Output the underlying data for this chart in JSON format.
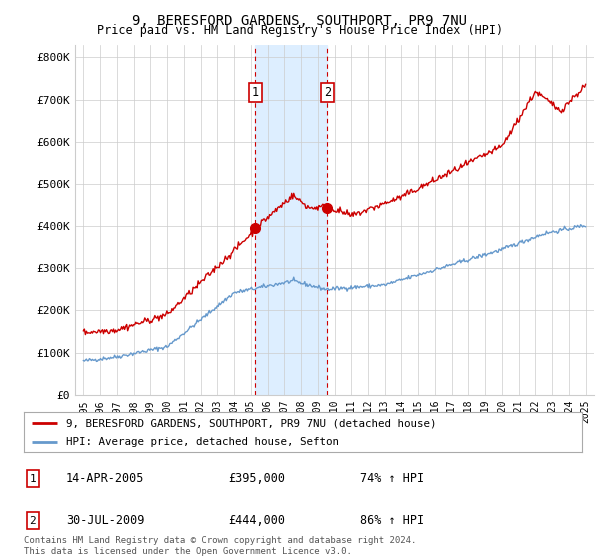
{
  "title1": "9, BERESFORD GARDENS, SOUTHPORT, PR9 7NU",
  "title2": "Price paid vs. HM Land Registry's House Price Index (HPI)",
  "ylabel_ticks": [
    "£0",
    "£100K",
    "£200K",
    "£300K",
    "£400K",
    "£500K",
    "£600K",
    "£700K",
    "£800K"
  ],
  "ytick_vals": [
    0,
    100000,
    200000,
    300000,
    400000,
    500000,
    600000,
    700000,
    800000
  ],
  "ylim": [
    0,
    830000
  ],
  "xlim_start": 1994.5,
  "xlim_end": 2025.5,
  "transaction1": {
    "date_num": 2005.28,
    "price": 395000,
    "label": "1",
    "date_str": "14-APR-2005",
    "pct": "74% ↑ HPI"
  },
  "transaction2": {
    "date_num": 2009.58,
    "price": 444000,
    "label": "2",
    "date_str": "30-JUL-2009",
    "pct": "86% ↑ HPI"
  },
  "legend_red_label": "9, BERESFORD GARDENS, SOUTHPORT, PR9 7NU (detached house)",
  "legend_blue_label": "HPI: Average price, detached house, Sefton",
  "footer": "Contains HM Land Registry data © Crown copyright and database right 2024.\nThis data is licensed under the Open Government Licence v3.0.",
  "red_color": "#cc0000",
  "blue_color": "#6699cc",
  "grid_color": "#cccccc",
  "bg_color": "#ffffff",
  "shade_color": "#ddeeff",
  "transaction_color": "#cc0000",
  "box_color": "#cc0000"
}
